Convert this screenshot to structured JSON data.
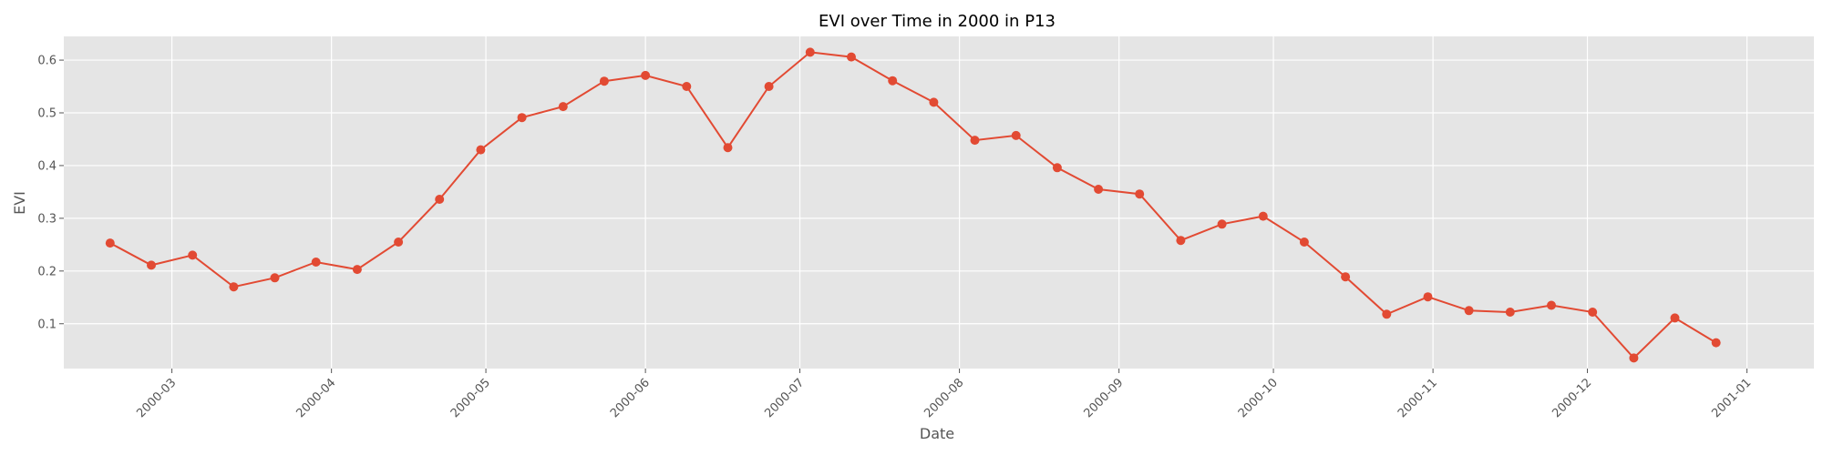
{
  "chart_data": {
    "type": "line",
    "title": "EVI over Time in 2000 in P13",
    "xlabel": "Date",
    "ylabel": "EVI",
    "xlim": [
      "2000-02-09",
      "2001-01-14"
    ],
    "ylim": [
      0.015,
      0.645
    ],
    "grid": true,
    "background": "#e5e5e5",
    "line_color": "#e24a33",
    "x_ticks": [
      "2000-03",
      "2000-04",
      "2000-05",
      "2000-06",
      "2000-07",
      "2000-08",
      "2000-09",
      "2000-10",
      "2000-11",
      "2000-12",
      "2001-01"
    ],
    "y_ticks": [
      "0.1",
      "0.2",
      "0.3",
      "0.4",
      "0.5",
      "0.6"
    ],
    "series": [
      {
        "x": [
          "2000-02-18",
          "2000-02-26",
          "2000-03-05",
          "2000-03-13",
          "2000-03-21",
          "2000-03-29",
          "2000-04-06",
          "2000-04-14",
          "2000-04-22",
          "2000-04-30",
          "2000-05-08",
          "2000-05-16",
          "2000-05-24",
          "2000-06-01",
          "2000-06-09",
          "2000-06-17",
          "2000-06-25",
          "2000-07-03",
          "2000-07-11",
          "2000-07-19",
          "2000-07-27",
          "2000-08-04",
          "2000-08-12",
          "2000-08-20",
          "2000-08-28",
          "2000-09-05",
          "2000-09-13",
          "2000-09-21",
          "2000-09-29",
          "2000-10-07",
          "2000-10-15",
          "2000-10-23",
          "2000-10-31",
          "2000-11-08",
          "2000-11-16",
          "2000-11-24",
          "2000-12-02",
          "2000-12-10",
          "2000-12-18",
          "2000-12-26"
        ],
        "y": [
          0.253,
          0.211,
          0.23,
          0.17,
          0.187,
          0.217,
          0.203,
          0.255,
          0.336,
          0.43,
          0.491,
          0.512,
          0.56,
          0.571,
          0.55,
          0.434,
          0.55,
          0.615,
          0.606,
          0.561,
          0.52,
          0.448,
          0.457,
          0.396,
          0.355,
          0.346,
          0.258,
          0.289,
          0.304,
          0.255,
          0.189,
          0.118,
          0.151,
          0.125,
          0.122,
          0.135,
          0.122,
          0.035,
          0.111,
          0.064
        ]
      }
    ]
  }
}
